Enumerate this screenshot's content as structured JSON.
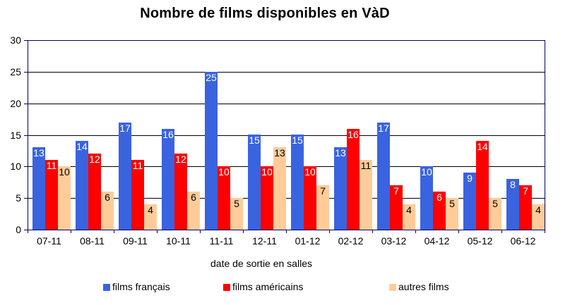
{
  "title": "Nombre de films disponibles en VàD",
  "x_axis_title": "date de sortie en salles",
  "colors": {
    "french": "#3A63E0",
    "american": "#FE0000",
    "other": "#FFCC99",
    "axis_border": "#000066",
    "gridline": "#000000",
    "text": "#000000"
  },
  "chart_data": {
    "type": "bar",
    "title": "Nombre de films disponibles en VàD",
    "xlabel": "date de sortie en salles",
    "ylabel": "",
    "ylim": [
      0,
      30
    ],
    "yticks": [
      0,
      5,
      10,
      15,
      20,
      25,
      30
    ],
    "grid": true,
    "legend_position": "bottom",
    "bar_labels": true,
    "categories": [
      "07-11",
      "08-11",
      "09-11",
      "10-11",
      "11-11",
      "12-11",
      "01-12",
      "02-12",
      "03-12",
      "04-12",
      "05-12",
      "06-12"
    ],
    "series": [
      {
        "name": "films français",
        "color": "#3A63E0",
        "label_color": "#FFFFFF",
        "values": [
          13,
          14,
          17,
          16,
          25,
          15,
          15,
          13,
          17,
          10,
          9,
          8
        ]
      },
      {
        "name": "films américains",
        "color": "#FE0000",
        "label_color": "#FFFFFF",
        "values": [
          11,
          12,
          11,
          12,
          10,
          10,
          10,
          16,
          7,
          6,
          14,
          7
        ]
      },
      {
        "name": "autres films",
        "color": "#FFCC99",
        "label_color": "#000000",
        "values": [
          10,
          6,
          4,
          6,
          5,
          13,
          7,
          11,
          4,
          5,
          5,
          4
        ]
      }
    ]
  }
}
